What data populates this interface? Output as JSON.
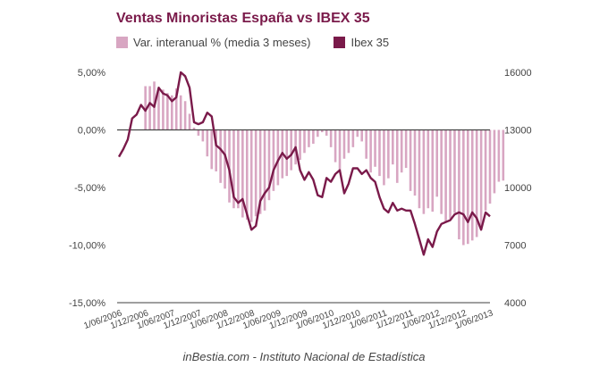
{
  "chart_data": {
    "type": "bar+line",
    "title": "Ventas Minoristas España vs IBEX 35",
    "legend": [
      "Var. interanual % (media 3 meses)",
      "Ibex 35"
    ],
    "legend_position": "top-left",
    "colors": {
      "bars": "#d8a6c2",
      "line": "#7a1a4a",
      "title": "#7a1a4a",
      "axis": "#444444"
    },
    "y_left": {
      "ticks": [
        "5,00%",
        "0,00%",
        "-5,00%",
        "-10,00%",
        "-15,00%"
      ],
      "values": [
        5,
        0,
        -5,
        -10,
        -15
      ],
      "range": [
        -15,
        5
      ]
    },
    "y_right": {
      "ticks": [
        "16000",
        "13000",
        "10000",
        "7000",
        "4000"
      ],
      "values": [
        16000,
        13000,
        10000,
        7000,
        4000
      ],
      "range": [
        4000,
        16000
      ]
    },
    "x_ticks": [
      "1/06/2006",
      "1/12/2006",
      "1/06/2007",
      "1/12/2007",
      "1/06/2008",
      "1/12/2008",
      "1/06/2009",
      "1/12/2009",
      "1/06/2010",
      "1/12/2010",
      "1/06/2011",
      "1/12/2011",
      "1/06/2012",
      "1/12/2012",
      "1/06/2013"
    ],
    "x_start_month": "2006-06",
    "bars_start_month_index": 6,
    "bars": [
      3.8,
      3.8,
      4.2,
      3.6,
      3.5,
      3.2,
      3.0,
      3.6,
      3.0,
      2.5,
      1.4,
      0.2,
      -0.5,
      -1.0,
      -2.3,
      -3.4,
      -3.6,
      -4.6,
      -5.1,
      -6.3,
      -6.8,
      -6.8,
      -7.6,
      -7.8,
      -8.0,
      -7.5,
      -7.3,
      -7.0,
      -6.1,
      -5.3,
      -4.8,
      -4.2,
      -4.0,
      -3.5,
      -3.0,
      -2.6,
      -2.0,
      -1.5,
      -1.2,
      -0.6,
      -0.2,
      -0.5,
      -1.5,
      -2.8,
      -3.5,
      -2.5,
      -2.0,
      -1.5,
      -0.6,
      -1.0,
      -2.5,
      -3.7,
      -3.2,
      -4.0,
      -4.8,
      -4.2,
      -3.0,
      -4.6,
      -3.7,
      -3.3,
      -5.3,
      -5.7,
      -6.8,
      -7.3,
      -6.8,
      -7.1,
      -5.8,
      -7.3,
      -8.0,
      -7.7,
      -7.2,
      -9.5,
      -10.0,
      -9.9,
      -9.6,
      -9.3,
      -8.5,
      -7.0,
      -6.4,
      -5.5,
      -4.5,
      -4.4
    ],
    "line": [
      11600,
      12000,
      12500,
      13600,
      13800,
      14300,
      14000,
      14400,
      14200,
      15200,
      14900,
      14800,
      14500,
      14700,
      16000,
      15800,
      15200,
      13400,
      13300,
      13400,
      13900,
      13700,
      12200,
      12000,
      11700,
      10900,
      9500,
      9200,
      9400,
      8600,
      7800,
      8000,
      9300,
      9700,
      10000,
      10900,
      11400,
      11800,
      11500,
      11700,
      12100,
      10900,
      10400,
      10800,
      10400,
      9600,
      9500,
      10500,
      10300,
      10700,
      10900,
      9700,
      10200,
      11000,
      11000,
      10700,
      10900,
      10500,
      10300,
      9500,
      8900,
      8700,
      9200,
      8800,
      8900,
      8800,
      8800,
      8100,
      7300,
      6500,
      7300,
      6900,
      7700,
      8100,
      8200,
      8300,
      8600,
      8700,
      8600,
      8200,
      8700,
      8400,
      7800,
      8700,
      8500
    ]
  },
  "footer": {
    "source": "inBestia.com - Instituto Nacional de Estadística"
  }
}
